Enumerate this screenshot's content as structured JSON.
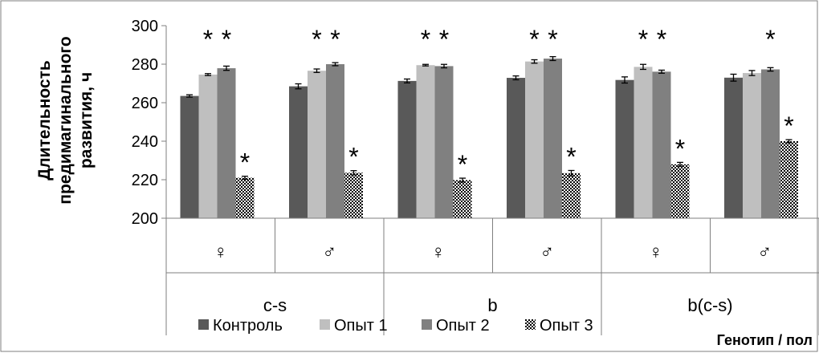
{
  "chart_data": {
    "type": "bar",
    "ylabel_lines": [
      "Длительность",
      "предимагинального",
      "развития, ч"
    ],
    "xlabel": "Генотип / пол",
    "ylim": [
      200,
      300
    ],
    "yticks": [
      200,
      220,
      240,
      260,
      280,
      300
    ],
    "grid": false,
    "legend_position": "bottom",
    "groups": [
      {
        "genotype": "c-s",
        "sexes": [
          "♀",
          "♂"
        ]
      },
      {
        "genotype": "b",
        "sexes": [
          "♀",
          "♂"
        ]
      },
      {
        "genotype": "b(c-s)",
        "sexes": [
          "♀",
          "♂"
        ]
      }
    ],
    "categories": [
      "c-s ♀",
      "c-s ♂",
      "b ♀",
      "b ♂",
      "b(c-s) ♀",
      "b(c-s) ♂"
    ],
    "series": [
      {
        "name": "Контроль",
        "color": "#595959",
        "pattern": "solid",
        "values": [
          263.5,
          268.5,
          271.3,
          272.9,
          271.8,
          273.0
        ],
        "errors": [
          0.6,
          1.3,
          1.0,
          1.0,
          1.6,
          1.8
        ],
        "stars": [
          "",
          "",
          "",
          "",
          "",
          ""
        ]
      },
      {
        "name": "Опыт 1",
        "color": "#bfbfbf",
        "pattern": "solid",
        "values": [
          274.6,
          276.6,
          279.5,
          281.4,
          278.6,
          275.4
        ],
        "errors": [
          0.5,
          0.9,
          0.4,
          0.9,
          1.3,
          1.3
        ],
        "stars": [
          "*",
          "*",
          "*",
          "*",
          "*",
          ""
        ]
      },
      {
        "name": "Опыт 2",
        "color": "#808080",
        "pattern": "solid",
        "values": [
          277.9,
          280.0,
          279.0,
          282.9,
          276.1,
          277.3
        ],
        "errors": [
          1.1,
          0.8,
          0.9,
          1.0,
          0.8,
          0.9
        ],
        "stars": [
          "*",
          "*",
          "*",
          "*",
          "*",
          "*"
        ]
      },
      {
        "name": "Опыт 3",
        "color": "#000000",
        "pattern": "checker",
        "values": [
          221.0,
          223.6,
          219.8,
          223.4,
          228.0,
          240.0
        ],
        "errors": [
          0.8,
          1.1,
          1.0,
          1.4,
          1.0,
          0.8
        ],
        "stars": [
          "*",
          "*",
          "*",
          "*",
          "*",
          "*"
        ]
      }
    ]
  }
}
